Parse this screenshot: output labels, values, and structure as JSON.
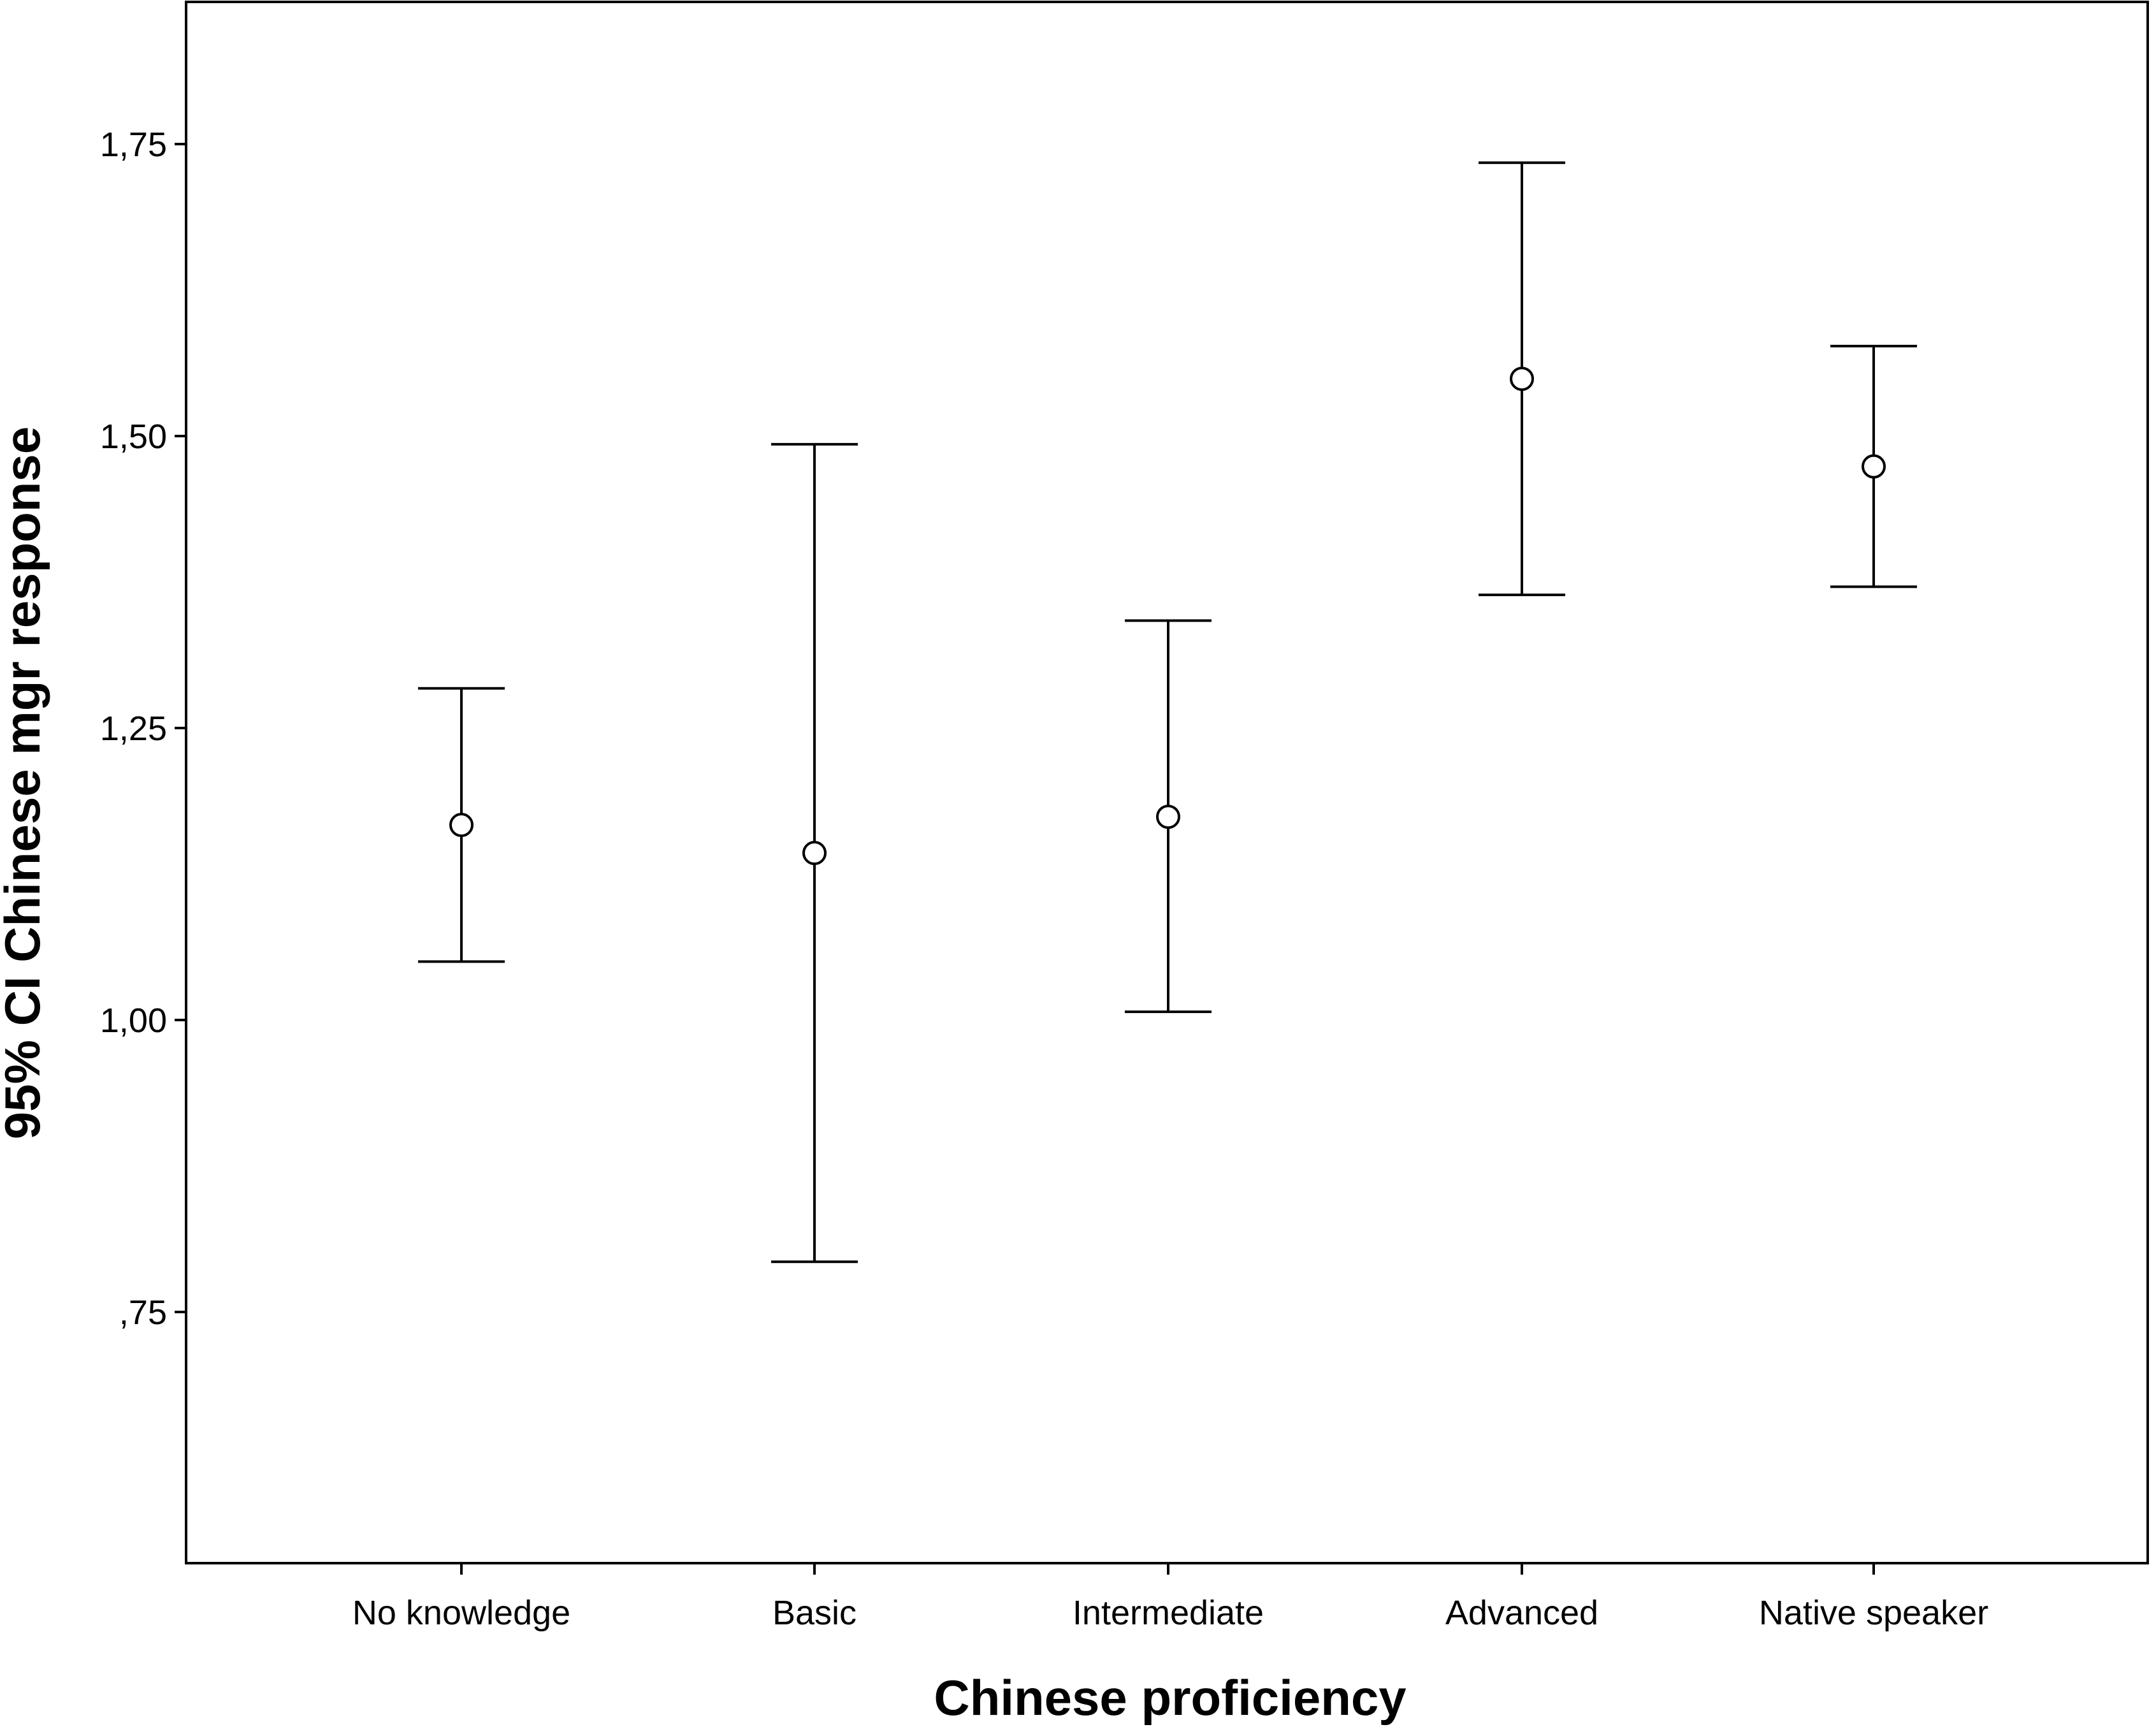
{
  "chart_data": {
    "type": "errorbar",
    "title": "",
    "xlabel": "Chinese proficiency",
    "ylabel": "95% CI Chinese mgr response",
    "categories": [
      "No knowledge",
      "Basic",
      "Intermediate",
      "Advanced",
      "Native speaker"
    ],
    "series": [
      {
        "mean": [
          1.167,
          1.143,
          1.174,
          1.549,
          1.474
        ],
        "lower": [
          1.05,
          0.793,
          1.007,
          1.364,
          1.371
        ],
        "upper": [
          1.284,
          1.493,
          1.342,
          1.734,
          1.577
        ]
      }
    ],
    "ylim": [
      0.57,
      1.87
    ],
    "yticks": [
      0.75,
      1.0,
      1.25,
      1.5,
      1.75
    ],
    "ytick_labels": [
      ",75",
      "1,00",
      "1,25",
      "1,50",
      "1,75"
    ],
    "grid": false,
    "legend": "none",
    "colors": {
      "line": "#000000",
      "frame": "#000000",
      "background": "#ffffff"
    }
  }
}
